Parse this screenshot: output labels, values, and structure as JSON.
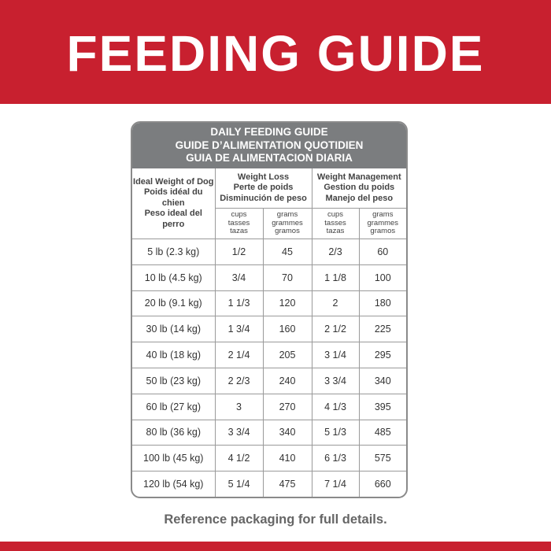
{
  "header": {
    "title": "FEEDING GUIDE"
  },
  "table": {
    "title": [
      "DAILY FEEDING GUIDE",
      "GUIDE D’ALIMENTATION QUOTIDIEN",
      "GUIA DE ALIMENTACION DIARIA"
    ],
    "weight_header": [
      "Ideal Weight of Dog",
      "Poids idéal du chien",
      "Peso ideal del perro"
    ],
    "groups": [
      [
        "Weight Loss",
        "Perte de poids",
        "Disminución de peso"
      ],
      [
        "Weight Management",
        "Gestion du poids",
        "Manejo del peso"
      ]
    ],
    "columns": [
      [
        "cups",
        "tasses",
        "tazas"
      ],
      [
        "grams",
        "grammes",
        "gramos"
      ],
      [
        "cups",
        "tasses",
        "tazas"
      ],
      [
        "grams",
        "grammes",
        "gramos"
      ]
    ],
    "rows": [
      [
        "5 lb (2.3 kg)",
        "1/2",
        "45",
        "2/3",
        "60"
      ],
      [
        "10 lb (4.5 kg)",
        "3/4",
        "70",
        "1 1/8",
        "100"
      ],
      [
        "20 lb (9.1 kg)",
        "1 1/3",
        "120",
        "2",
        "180"
      ],
      [
        "30 lb (14 kg)",
        "1 3/4",
        "160",
        "2 1/2",
        "225"
      ],
      [
        "40 lb (18 kg)",
        "2 1/4",
        "205",
        "3 1/4",
        "295"
      ],
      [
        "50 lb (23 kg)",
        "2 2/3",
        "240",
        "3 3/4",
        "340"
      ],
      [
        "60 lb (27 kg)",
        "3",
        "270",
        "4 1/3",
        "395"
      ],
      [
        "80 lb (36 kg)",
        "3 3/4",
        "340",
        "5 1/3",
        "485"
      ],
      [
        "100 lb (45 kg)",
        "4 1/2",
        "410",
        "6 1/3",
        "575"
      ],
      [
        "120 lb (54 kg)",
        "5 1/4",
        "475",
        "7 1/4",
        "660"
      ]
    ]
  },
  "footer": {
    "text": "Reference packaging for full details."
  }
}
